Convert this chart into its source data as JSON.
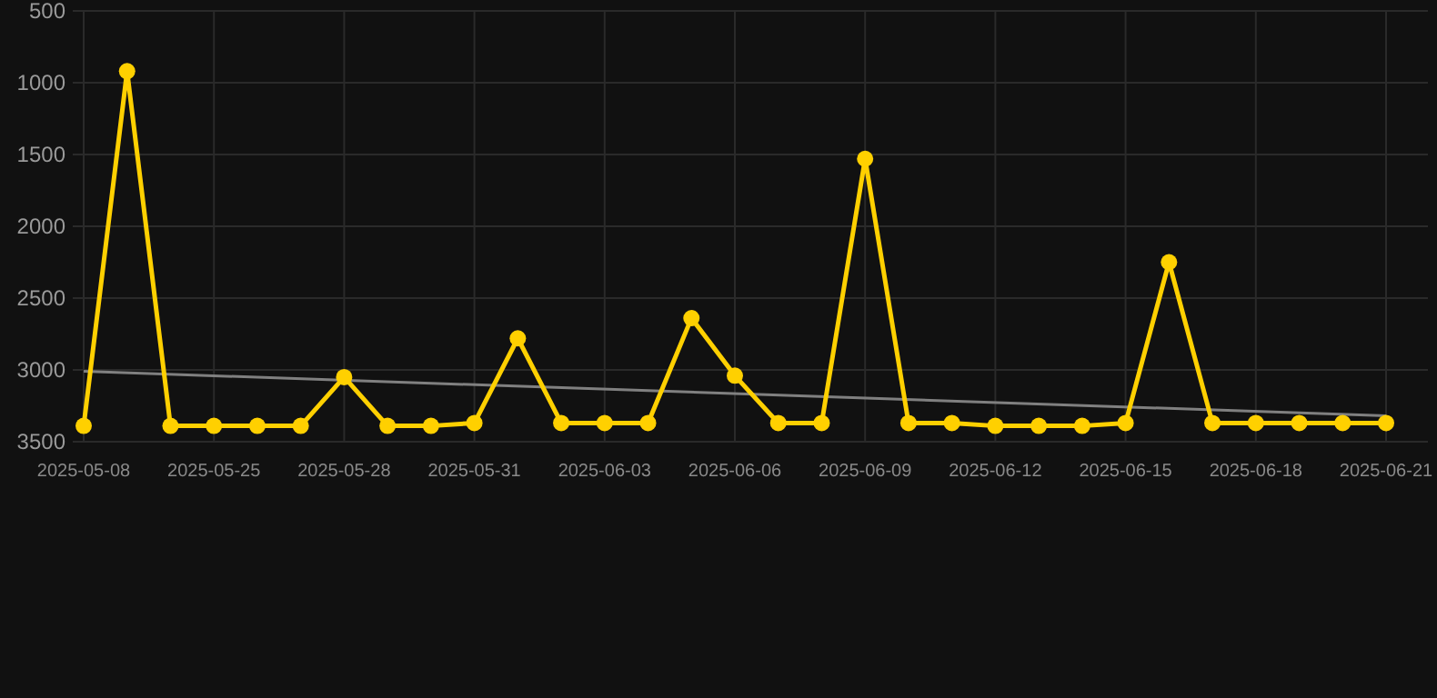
{
  "chart_data": {
    "type": "line",
    "categories": [
      "2025-05-08",
      null,
      null,
      "2025-05-25",
      null,
      null,
      "2025-05-28",
      null,
      null,
      "2025-05-31",
      null,
      null,
      "2025-06-03",
      null,
      null,
      "2025-06-06",
      null,
      null,
      "2025-06-09",
      null,
      null,
      "2025-06-12",
      null,
      null,
      "2025-06-15",
      null,
      null,
      "2025-06-18",
      null,
      null,
      "2025-06-21"
    ],
    "series": [
      {
        "color": "#ffd000",
        "marker": "circle",
        "values": [
          3390,
          920,
          3390,
          3390,
          3390,
          3390,
          3050,
          3390,
          3390,
          3370,
          2780,
          3370,
          3370,
          3370,
          2640,
          3040,
          3370,
          3370,
          1530,
          3370,
          3370,
          3390,
          3390,
          3390,
          3370,
          2250,
          3370,
          3370,
          3370,
          3370,
          3370
        ]
      },
      {
        "color": "#808080",
        "marker": "none",
        "values": [
          3010,
          null,
          null,
          null,
          null,
          null,
          null,
          null,
          null,
          null,
          null,
          null,
          null,
          null,
          null,
          null,
          null,
          null,
          null,
          null,
          null,
          null,
          null,
          null,
          null,
          null,
          null,
          null,
          null,
          null,
          3320
        ]
      }
    ],
    "ylim": [
      3500,
      500
    ],
    "yticks": [
      500,
      1000,
      1500,
      2000,
      2500,
      3000,
      3500
    ],
    "grid": true
  }
}
